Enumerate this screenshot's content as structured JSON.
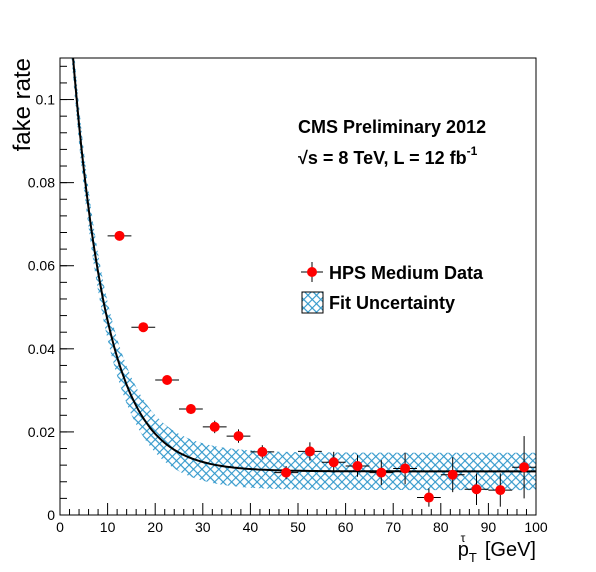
{
  "chart_data": {
    "type": "scatter",
    "title": "",
    "xlabel": "p",
    "xlabel_sup": "τ",
    "xlabel_sub": "T",
    "xlabel_unit": "[GeV]",
    "ylabel": "fake rate",
    "xlim": [
      0,
      100
    ],
    "ylim": [
      0,
      0.11
    ],
    "x_ticks": [
      "0",
      "10",
      "20",
      "30",
      "40",
      "50",
      "60",
      "70",
      "80",
      "90",
      "100"
    ],
    "y_ticks": [
      "0",
      "0.02",
      "0.04",
      "0.06",
      "0.08",
      "0.1"
    ],
    "grid": false,
    "legend_position": "right-middle",
    "annotations": {
      "line1": "CMS Preliminary 2012",
      "line2_prefix": "√s = 8 TeV, L = 12 fb",
      "line2_sup": "-1"
    },
    "series": [
      {
        "name": "HPS Medium Data",
        "kind": "points",
        "color": "#ff0000",
        "x": [
          12.5,
          17.5,
          22.5,
          27.5,
          32.5,
          37.5,
          42.5,
          47.5,
          52.5,
          57.5,
          62.5,
          67.5,
          72.5,
          77.5,
          82.5,
          87.5,
          92.5,
          97.5
        ],
        "xerr": [
          2.5,
          2.5,
          2.5,
          2.5,
          2.5,
          2.5,
          2.5,
          2.5,
          2.5,
          2.5,
          2.5,
          2.5,
          2.5,
          2.5,
          2.5,
          2.5,
          2.5,
          2.5
        ],
        "y": [
          0.0672,
          0.0452,
          0.0325,
          0.0255,
          0.0212,
          0.019,
          0.0152,
          0.0102,
          0.0153,
          0.0127,
          0.0118,
          0.0102,
          0.0112,
          0.0042,
          0.0097,
          0.0062,
          0.006,
          0.0115
        ],
        "yerr": [
          0.001,
          0.001,
          0.001,
          0.0012,
          0.0015,
          0.0016,
          0.0016,
          0.0016,
          0.0022,
          0.0025,
          0.0026,
          0.003,
          0.0038,
          0.0022,
          0.0042,
          0.0038,
          0.004,
          0.0075
        ]
      },
      {
        "name": "Fit Uncertainty",
        "kind": "band",
        "color": "#3399cc",
        "model": "a*exp(-x/b)+c",
        "params": {
          "a": 0.1456,
          "b": 7.2,
          "c": 0.0105
        },
        "band_width": 0.0045
      }
    ]
  }
}
